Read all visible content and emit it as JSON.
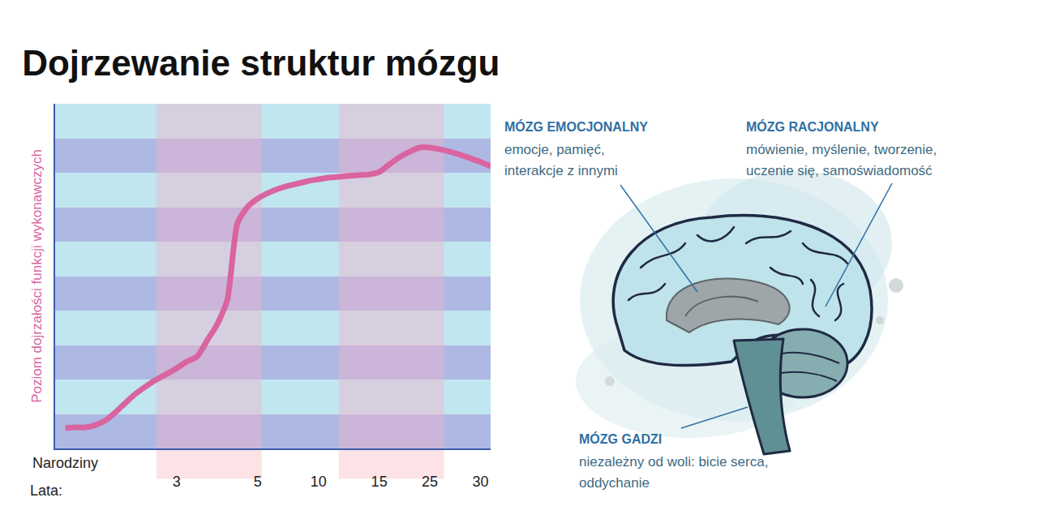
{
  "chart_data": {
    "type": "line",
    "title": "Dojrzewanie struktur mózgu",
    "ylabel": "Poziom dojrzałości funkcji wykonawczych",
    "xlabel": "Lata:",
    "categories": [
      null,
      "Narodziny",
      null,
      null,
      null,
      null,
      null,
      null,
      null,
      null,
      null,
      null,
      "3",
      null,
      null,
      null,
      null,
      null,
      null,
      null,
      "5",
      null,
      null,
      null,
      null,
      null,
      "10",
      null,
      null,
      null,
      null,
      null,
      "15",
      null,
      null,
      null,
      null,
      "25",
      null,
      null,
      null,
      null,
      "30",
      null
    ],
    "values": [
      null,
      0.59,
      0.61,
      0.61,
      0.68,
      0.82,
      1.06,
      1.34,
      1.6,
      1.81,
      2.0,
      2.16,
      2.33,
      2.52,
      2.66,
      3.13,
      3.6,
      4.31,
      6.54,
      7.01,
      7.25,
      7.41,
      7.53,
      7.62,
      7.69,
      7.76,
      7.81,
      7.86,
      7.88,
      7.91,
      7.93,
      7.95,
      8.02,
      8.24,
      8.45,
      8.61,
      8.73,
      8.73,
      8.68,
      8.61,
      8.52,
      8.42,
      8.31,
      8.19
    ],
    "color": "#d9649f",
    "ylim": [
      0,
      10
    ],
    "yticks": [
      0,
      1,
      2,
      3,
      4,
      5,
      6,
      7,
      8,
      9,
      10
    ],
    "grid": true,
    "tick_labels": "x",
    "highlights": [
      [
        10,
        20.4
      ],
      [
        28,
        38.4
      ]
    ]
  },
  "diagram": {
    "labels": [
      {
        "title": "MÓZG EMOCJONALNY",
        "lines": [
          "emocje, pamięć,",
          "interakcje z innymi"
        ]
      },
      {
        "title": "MÓZG RACJONALNY",
        "lines": [
          "mówienie, myślenie, tworzenie,",
          "uczenie się, samoświadomość"
        ]
      },
      {
        "title": "MÓZG GADZI",
        "lines": [
          "niezależny od woli: bicie serca,",
          "oddychanie"
        ]
      }
    ]
  }
}
